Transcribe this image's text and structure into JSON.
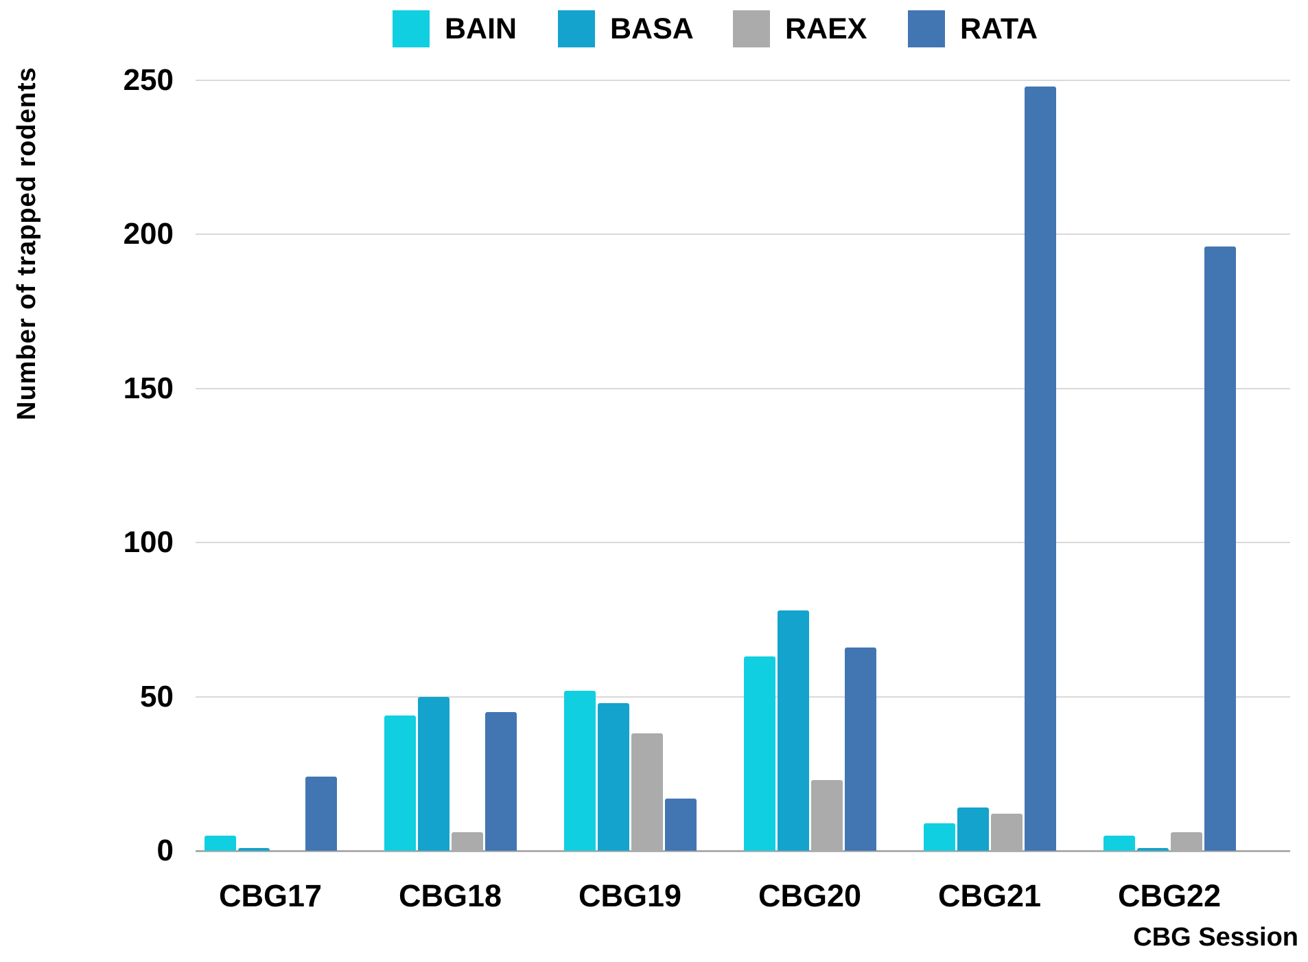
{
  "chart_data": {
    "type": "bar",
    "title": "",
    "xlabel": "CBG Session",
    "ylabel": "Number of trapped rodents",
    "categories": [
      "CBG17",
      "CBG18",
      "CBG19",
      "CBG20",
      "CBG21",
      "CBG22"
    ],
    "series": [
      {
        "name": "BAIN",
        "color": "#10CFE0",
        "values": [
          5,
          44,
          52,
          63,
          9,
          5
        ]
      },
      {
        "name": "BASA",
        "color": "#14A3CC",
        "values": [
          1,
          50,
          48,
          78,
          14,
          1
        ]
      },
      {
        "name": "RAEX",
        "color": "#ABABAB",
        "values": [
          0,
          6,
          38,
          23,
          12,
          6
        ]
      },
      {
        "name": "RATA",
        "color": "#4276B2",
        "values": [
          24,
          45,
          17,
          66,
          248,
          196
        ]
      }
    ],
    "ylim": [
      0,
      250
    ],
    "yticks": [
      0,
      50,
      100,
      150,
      200,
      250
    ],
    "grid": "horizontal",
    "legend_position": "top",
    "background": "#ffffff",
    "gridline_color": "#d9d9d9",
    "baseline_color": "#adadad",
    "text_color": "#000000"
  }
}
